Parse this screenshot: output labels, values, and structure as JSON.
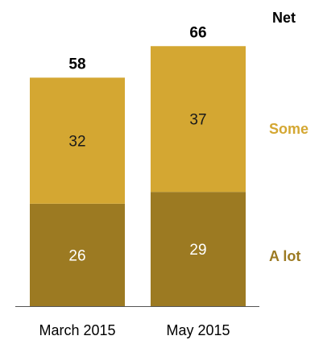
{
  "chart_data": {
    "type": "bar",
    "stacked": true,
    "categories": [
      "March 2015",
      "May 2015"
    ],
    "series": [
      {
        "name": "A lot",
        "values": [
          26,
          29
        ],
        "color": "#9c7a22"
      },
      {
        "name": "Some",
        "values": [
          32,
          37
        ],
        "color": "#d4a732"
      }
    ],
    "totals_label": "Net",
    "totals": [
      58,
      66
    ],
    "title": "",
    "xlabel": "",
    "ylabel": "",
    "ylim": [
      0,
      70
    ],
    "grid": false,
    "legend": "right",
    "colors": {
      "a_lot_text": "#9c7a22",
      "some_text": "#d4a732",
      "a_lot_value_text": "#ffffff",
      "some_value_text": "#1a1a1a",
      "axis": "#555555"
    }
  }
}
